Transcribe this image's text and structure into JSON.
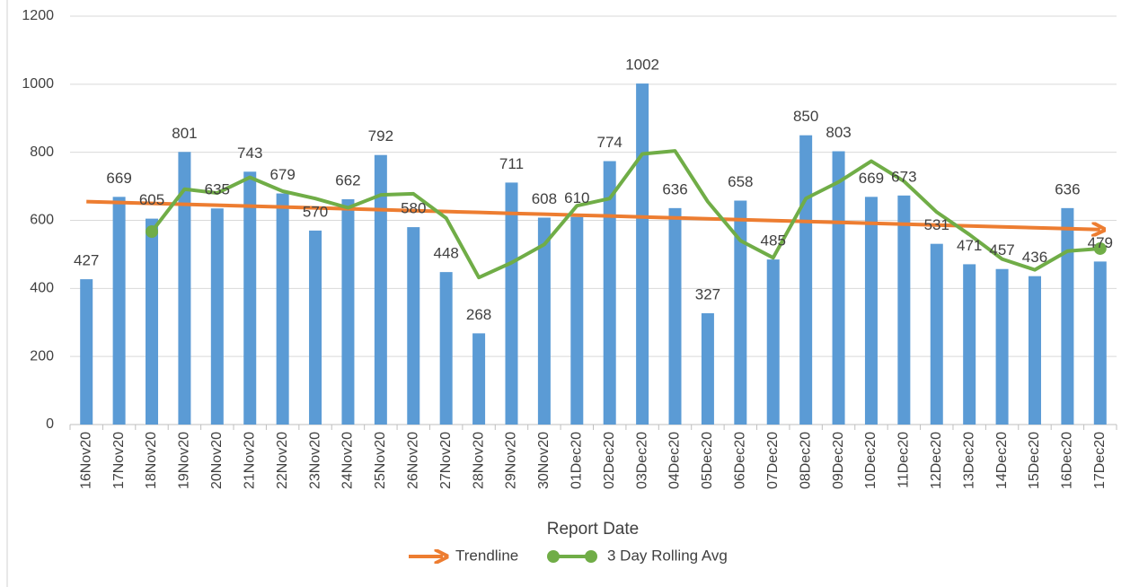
{
  "chart_data": {
    "type": "bar",
    "x_label": "Report Date",
    "categories": [
      "16Nov20",
      "17Nov20",
      "18Nov20",
      "19Nov20",
      "20Nov20",
      "21Nov20",
      "22Nov20",
      "23Nov20",
      "24Nov20",
      "25Nov20",
      "26Nov20",
      "27Nov20",
      "28Nov20",
      "29Nov20",
      "30Nov20",
      "01Dec20",
      "02Dec20",
      "03Dec20",
      "04Dec20",
      "05Dec20",
      "06Dec20",
      "07Dec20",
      "08Dec20",
      "09Dec20",
      "10Dec20",
      "11Dec20",
      "12Dec20",
      "13Dec20",
      "14Dec20",
      "15Dec20",
      "16Dec20",
      "17Dec20"
    ],
    "values": [
      427,
      669,
      605,
      801,
      635,
      743,
      679,
      570,
      662,
      792,
      580,
      448,
      268,
      711,
      608,
      610,
      774,
      1002,
      636,
      327,
      658,
      485,
      850,
      803,
      669,
      673,
      531,
      471,
      457,
      436,
      636,
      479
    ],
    "color": "#5b9bd5",
    "series": [
      {
        "name": "Trendline",
        "color": "#ed7d31",
        "values": [
          655.0,
          652.4,
          649.7,
          647.1,
          644.4,
          641.8,
          639.1,
          636.5,
          633.8,
          631.2,
          628.5,
          625.9,
          623.3,
          620.6,
          618.0,
          615.3,
          612.7,
          610.0,
          607.4,
          604.7,
          602.1,
          599.5,
          596.8,
          594.2,
          591.5,
          588.9,
          586.2,
          583.6,
          580.9,
          578.3,
          575.6,
          573.0
        ]
      },
      {
        "name": "3 Day Rolling Avg",
        "color": "#70ad47",
        "values": [
          null,
          null,
          567.0,
          691.7,
          680.3,
          726.3,
          685.7,
          664.0,
          637.0,
          674.7,
          678.0,
          606.7,
          432.0,
          475.7,
          529.0,
          643.0,
          664.0,
          795.3,
          804.0,
          655.0,
          540.3,
          490.0,
          664.3,
          712.7,
          774.0,
          715.0,
          624.3,
          558.3,
          486.3,
          454.7,
          509.7,
          517.0
        ]
      }
    ],
    "ylim": [
      0,
      1200
    ],
    "yticks": [
      0,
      200,
      400,
      600,
      800,
      1000,
      1200
    ],
    "grid": true,
    "legend": "bottom"
  }
}
